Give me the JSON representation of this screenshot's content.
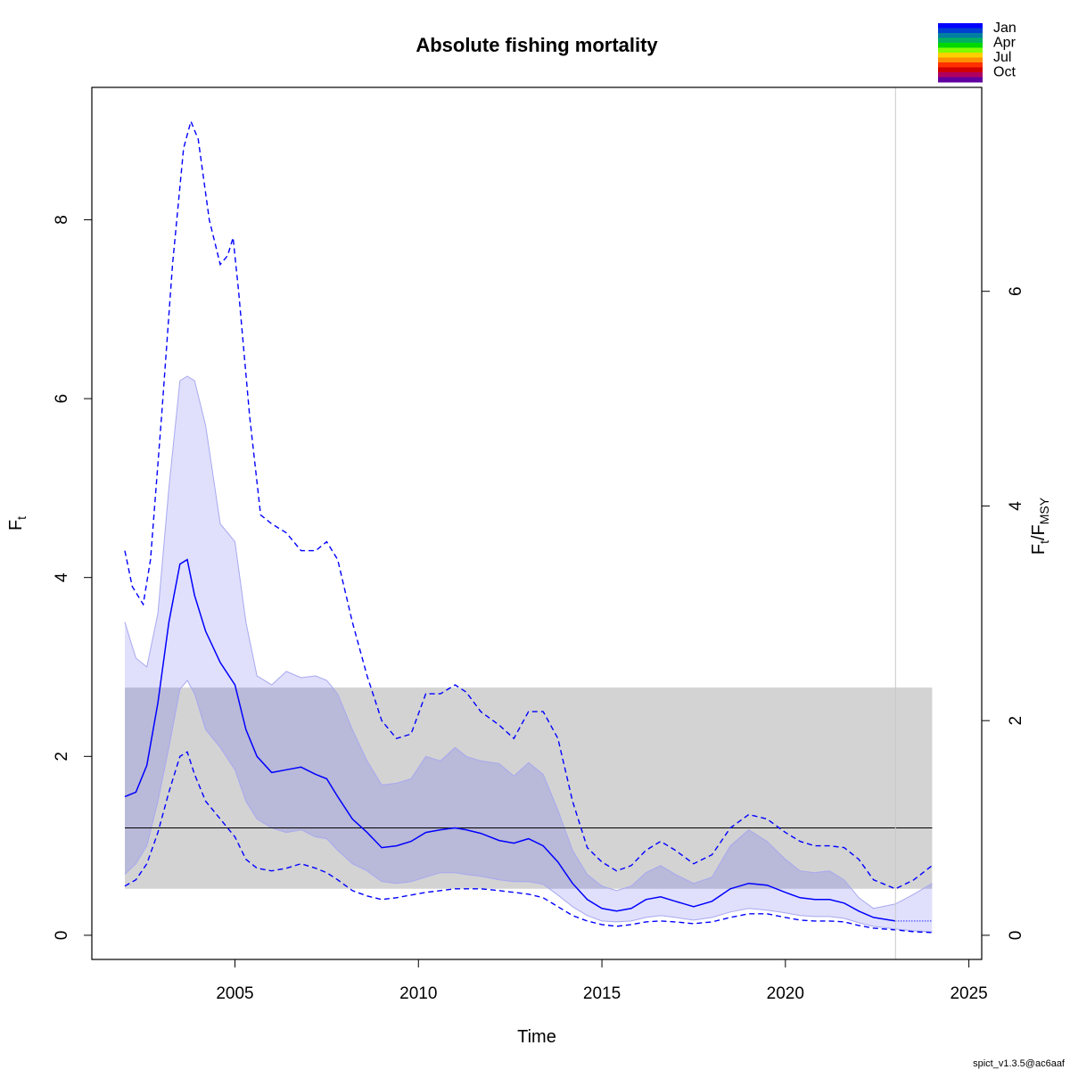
{
  "chart_data": {
    "type": "line",
    "title": "Absolute fishing mortality",
    "xlabel": "Time",
    "ylabel": "F",
    "ylabel_sub": "t",
    "y2label_parts": [
      "F",
      "t",
      "/F",
      "MSY"
    ],
    "xlim": [
      2001.1,
      2025.35
    ],
    "ylim": [
      -0.27,
      9.48
    ],
    "y2_scale": 1.2,
    "x_ticks": [
      2005,
      2010,
      2015,
      2020,
      2025
    ],
    "y_ticks": [
      0,
      2,
      4,
      6,
      8
    ],
    "y2_ticks": [
      0,
      2,
      4,
      6
    ],
    "vline_x": 2023,
    "reference": {
      "fmsy": 1.2,
      "fmsy_ci": [
        0.52,
        2.77
      ],
      "x_range": [
        2002,
        2024
      ]
    },
    "legend": {
      "position": "top-right",
      "labels": [
        "Jan",
        "Apr",
        "Jul",
        "Oct"
      ],
      "colors": [
        "#0000ff",
        "#0040d0",
        "#007fa0",
        "#00b060",
        "#00d800",
        "#80ff00",
        "#ffd000",
        "#ff9000",
        "#ff3000",
        "#d00000",
        "#b00060",
        "#6000a0"
      ]
    },
    "colors": {
      "estimate": "#0000ff",
      "ci_fill": "#e0e0fc",
      "ci_edge": "#a8a8f0",
      "ref_fill": "#d3d3d3",
      "overlap_fill": "#b9b9d9",
      "vline": "#c8c8c8"
    },
    "series": [
      {
        "role": "estimate",
        "x": [
          2002,
          2002.3,
          2002.6,
          2002.9,
          2003.2,
          2003.5,
          2003.7,
          2003.9,
          2004.2,
          2004.6,
          2005,
          2005.3,
          2005.6,
          2006,
          2006.4,
          2006.8,
          2007.2,
          2007.5,
          2007.8,
          2008.2,
          2008.6,
          2009,
          2009.4,
          2009.8,
          2010.2,
          2010.6,
          2011,
          2011.3,
          2011.7,
          2012.2,
          2012.6,
          2013,
          2013.4,
          2013.8,
          2014.2,
          2014.6,
          2015,
          2015.4,
          2015.8,
          2016.2,
          2016.6,
          2017,
          2017.5,
          2018,
          2018.5,
          2019,
          2019.5,
          2020,
          2020.4,
          2020.8,
          2021.2,
          2021.6,
          2022,
          2022.4,
          2023
        ],
        "y": [
          1.55,
          1.6,
          1.9,
          2.6,
          3.5,
          4.15,
          4.2,
          3.8,
          3.4,
          3.05,
          2.8,
          2.3,
          2.0,
          1.82,
          1.85,
          1.88,
          1.8,
          1.75,
          1.55,
          1.3,
          1.15,
          0.98,
          1.0,
          1.05,
          1.15,
          1.18,
          1.2,
          1.18,
          1.14,
          1.06,
          1.03,
          1.08,
          1.0,
          0.82,
          0.58,
          0.4,
          0.3,
          0.27,
          0.3,
          0.4,
          0.43,
          0.38,
          0.32,
          0.38,
          0.52,
          0.58,
          0.56,
          0.48,
          0.42,
          0.4,
          0.4,
          0.36,
          0.27,
          0.2,
          0.16
        ]
      },
      {
        "role": "forecast",
        "x": [
          2023,
          2024
        ],
        "y": [
          0.16,
          0.16
        ]
      },
      {
        "role": "ci_upper",
        "x": [
          2002,
          2002.3,
          2002.6,
          2002.9,
          2003.2,
          2003.5,
          2003.7,
          2003.9,
          2004.2,
          2004.6,
          2004.8,
          2005,
          2005.3,
          2005.6,
          2006,
          2006.4,
          2006.8,
          2007.2,
          2007.5,
          2007.8,
          2008.2,
          2008.6,
          2009,
          2009.4,
          2009.8,
          2010.2,
          2010.6,
          2011,
          2011.3,
          2011.7,
          2012.2,
          2012.6,
          2013,
          2013.4,
          2013.8,
          2014.2,
          2014.6,
          2015,
          2015.4,
          2015.8,
          2016.2,
          2016.6,
          2017,
          2017.5,
          2018,
          2018.5,
          2019,
          2019.5,
          2020,
          2020.4,
          2020.8,
          2021.2,
          2021.6,
          2022,
          2022.4,
          2023,
          2023.5,
          2024
        ],
        "y": [
          3.5,
          3.1,
          3.0,
          3.6,
          5.0,
          6.2,
          6.25,
          6.2,
          5.7,
          4.6,
          4.5,
          4.4,
          3.5,
          2.9,
          2.8,
          2.95,
          2.88,
          2.9,
          2.85,
          2.7,
          2.3,
          1.95,
          1.68,
          1.7,
          1.75,
          2.0,
          1.95,
          2.1,
          2.0,
          1.95,
          1.92,
          1.78,
          1.93,
          1.8,
          1.4,
          0.95,
          0.68,
          0.55,
          0.5,
          0.55,
          0.7,
          0.78,
          0.68,
          0.58,
          0.65,
          1.0,
          1.18,
          1.05,
          0.85,
          0.72,
          0.7,
          0.72,
          0.62,
          0.42,
          0.3,
          0.35,
          0.46,
          0.58
        ]
      },
      {
        "role": "ci_lower",
        "x": [
          2002,
          2002.3,
          2002.6,
          2002.9,
          2003.2,
          2003.5,
          2003.7,
          2003.9,
          2004.2,
          2004.6,
          2005,
          2005.3,
          2005.6,
          2006,
          2006.4,
          2006.8,
          2007.2,
          2007.5,
          2007.8,
          2008.2,
          2008.6,
          2009,
          2009.4,
          2009.8,
          2010.2,
          2010.6,
          2011,
          2011.3,
          2011.7,
          2012.2,
          2012.6,
          2013,
          2013.4,
          2013.8,
          2014.2,
          2014.6,
          2015,
          2015.4,
          2015.8,
          2016.2,
          2016.6,
          2017,
          2017.5,
          2018,
          2018.5,
          2019,
          2019.5,
          2020,
          2020.4,
          2020.8,
          2021.2,
          2021.6,
          2022,
          2022.4,
          2023,
          2023.5,
          2024
        ],
        "y": [
          0.68,
          0.8,
          1.0,
          1.5,
          2.1,
          2.75,
          2.85,
          2.7,
          2.3,
          2.1,
          1.85,
          1.5,
          1.3,
          1.2,
          1.15,
          1.18,
          1.1,
          1.08,
          0.95,
          0.8,
          0.72,
          0.6,
          0.58,
          0.6,
          0.65,
          0.7,
          0.7,
          0.68,
          0.66,
          0.62,
          0.6,
          0.6,
          0.57,
          0.45,
          0.32,
          0.22,
          0.16,
          0.15,
          0.16,
          0.2,
          0.22,
          0.2,
          0.17,
          0.2,
          0.26,
          0.3,
          0.28,
          0.25,
          0.22,
          0.21,
          0.21,
          0.19,
          0.14,
          0.1,
          0.07,
          0.05,
          0.04
        ]
      },
      {
        "role": "ci_upper_dashed",
        "x": [
          2002,
          2002.2,
          2002.5,
          2002.7,
          2003,
          2003.3,
          2003.6,
          2003.8,
          2004,
          2004.3,
          2004.6,
          2004.8,
          2004.95,
          2005.1,
          2005.4,
          2005.7,
          2006,
          2006.4,
          2006.8,
          2007.2,
          2007.5,
          2007.8,
          2008.2,
          2008.6,
          2009,
          2009.4,
          2009.8,
          2010.2,
          2010.6,
          2011,
          2011.3,
          2011.7,
          2012.2,
          2012.6,
          2013,
          2013.4,
          2013.8,
          2014.2,
          2014.6,
          2015,
          2015.4,
          2015.8,
          2016.2,
          2016.6,
          2017,
          2017.5,
          2018,
          2018.5,
          2019,
          2019.5,
          2020,
          2020.4,
          2020.8,
          2021.2,
          2021.6,
          2022,
          2022.4,
          2023,
          2023.5,
          2024
        ],
        "y": [
          4.3,
          3.9,
          3.7,
          4.2,
          5.8,
          7.5,
          8.8,
          9.1,
          8.9,
          8.0,
          7.5,
          7.6,
          7.8,
          7.2,
          5.8,
          4.7,
          4.6,
          4.5,
          4.3,
          4.3,
          4.4,
          4.2,
          3.5,
          2.9,
          2.4,
          2.2,
          2.25,
          2.7,
          2.7,
          2.8,
          2.72,
          2.5,
          2.35,
          2.2,
          2.5,
          2.5,
          2.2,
          1.5,
          0.98,
          0.82,
          0.72,
          0.78,
          0.95,
          1.05,
          0.95,
          0.8,
          0.9,
          1.2,
          1.35,
          1.3,
          1.15,
          1.05,
          1.0,
          1.0,
          0.98,
          0.85,
          0.62,
          0.52,
          0.62,
          0.78
        ]
      },
      {
        "role": "ci_lower_dashed",
        "x": [
          2002,
          2002.3,
          2002.6,
          2002.9,
          2003.2,
          2003.5,
          2003.7,
          2003.9,
          2004.2,
          2004.6,
          2005,
          2005.3,
          2005.6,
          2006,
          2006.4,
          2006.8,
          2007.2,
          2007.5,
          2007.8,
          2008.2,
          2008.6,
          2009,
          2009.4,
          2009.8,
          2010.2,
          2010.6,
          2011,
          2011.3,
          2011.7,
          2012.2,
          2012.6,
          2013,
          2013.4,
          2013.8,
          2014.2,
          2014.6,
          2015,
          2015.4,
          2015.8,
          2016.2,
          2016.6,
          2017,
          2017.5,
          2018,
          2018.5,
          2019,
          2019.5,
          2020,
          2020.4,
          2020.8,
          2021.2,
          2021.6,
          2022,
          2022.4,
          2023,
          2023.5,
          2024
        ],
        "y": [
          0.55,
          0.62,
          0.8,
          1.15,
          1.6,
          2.0,
          2.05,
          1.8,
          1.5,
          1.3,
          1.1,
          0.85,
          0.75,
          0.72,
          0.75,
          0.8,
          0.75,
          0.7,
          0.62,
          0.5,
          0.44,
          0.4,
          0.42,
          0.45,
          0.48,
          0.5,
          0.52,
          0.52,
          0.52,
          0.5,
          0.48,
          0.46,
          0.42,
          0.32,
          0.22,
          0.16,
          0.12,
          0.1,
          0.12,
          0.15,
          0.16,
          0.15,
          0.13,
          0.15,
          0.2,
          0.24,
          0.24,
          0.2,
          0.17,
          0.16,
          0.16,
          0.15,
          0.11,
          0.08,
          0.06,
          0.04,
          0.03
        ]
      }
    ]
  },
  "footer": "spict_v1.3.5@ac6aaf"
}
